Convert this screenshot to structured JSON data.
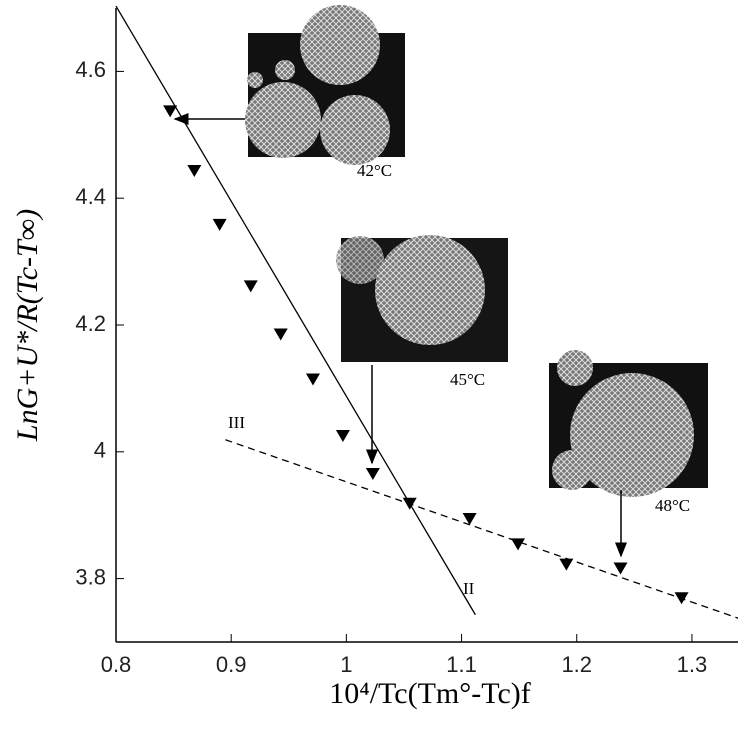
{
  "chart_data": {
    "type": "scatter",
    "x_label": "10⁴/Tc(Tm°-Tc)f",
    "y_label": "LnG+U*/R(Tc-T∞)",
    "xlim": [
      0.8,
      1.34
    ],
    "ylim": [
      3.7,
      4.7
    ],
    "xticks": [
      0.8,
      0.9,
      1,
      1.1,
      1.2,
      1.3
    ],
    "yticks": [
      3.8,
      4,
      4.2,
      4.4,
      4.6
    ],
    "color": "#000000",
    "points": {
      "x": [
        0.847,
        0.868,
        0.89,
        0.917,
        0.943,
        0.971,
        0.997,
        1.023,
        1.055,
        1.107,
        1.149,
        1.191,
        1.238,
        1.291
      ],
      "values": [
        4.537,
        4.443,
        4.358,
        4.261,
        4.185,
        4.114,
        4.025,
        3.965,
        3.918,
        3.894,
        3.854,
        3.822,
        3.816,
        3.769
      ]
    },
    "fit_lines": [
      {
        "name": "II",
        "style": "solid",
        "x": [
          0.8,
          1.112
        ],
        "values": [
          4.703,
          3.743
        ]
      },
      {
        "name": "III",
        "style": "dashed",
        "x": [
          0.895,
          1.341
        ],
        "values": [
          4.019,
          3.737
        ]
      }
    ],
    "annotations": [
      "42°C",
      "45°C",
      "48°C"
    ]
  }
}
